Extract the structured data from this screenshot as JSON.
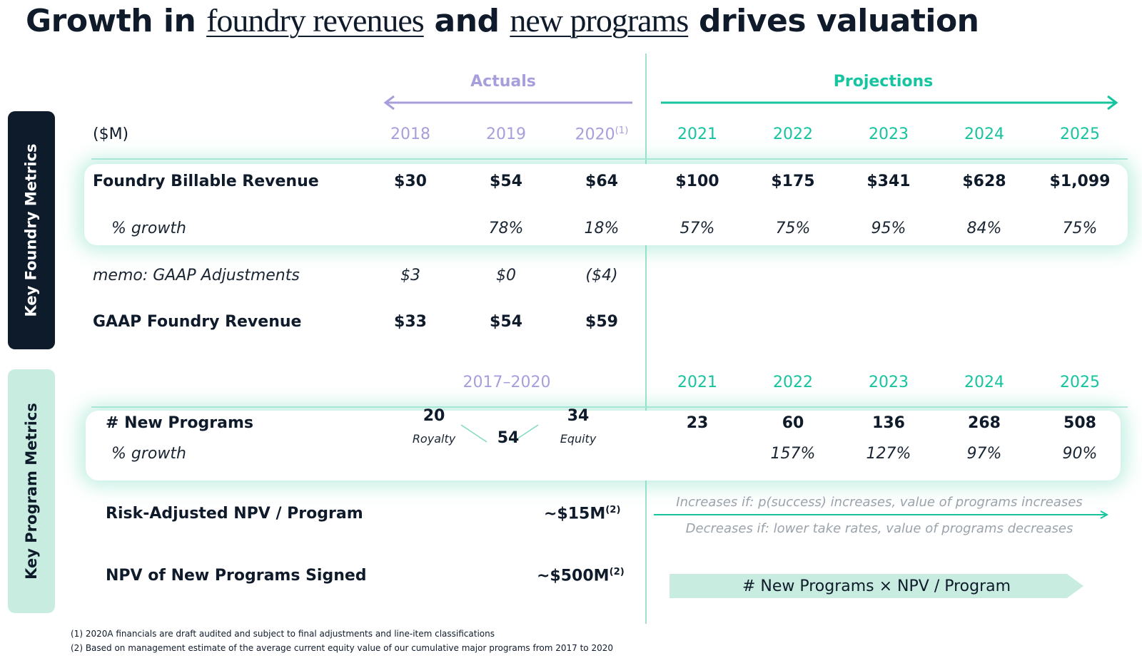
{
  "title": {
    "part1": "Growth in ",
    "part2": "foundry revenues",
    "part3": " and ",
    "part4": "new programs",
    "part5": " drives valuation"
  },
  "tabs": {
    "foundry": "Key Foundry Metrics",
    "program": "Key Program Metrics"
  },
  "headers": {
    "actuals": "Actuals",
    "projections": "Projections",
    "unit": "($M)",
    "actual_years": [
      "2018",
      "2019",
      "2020"
    ],
    "year_2020_sup": "(1)",
    "proj_years": [
      "2021",
      "2022",
      "2023",
      "2024",
      "2025"
    ],
    "program_actual_range": "2017–2020"
  },
  "foundry": {
    "billable_label": "Foundry Billable Revenue",
    "billable_values": [
      "$30",
      "$54",
      "$64",
      "$100",
      "$175",
      "$341",
      "$628",
      "$1,099"
    ],
    "growth_label": "% growth",
    "growth_values": [
      "",
      "78%",
      "18%",
      "57%",
      "75%",
      "95%",
      "84%",
      "75%"
    ],
    "memo_label": "memo: GAAP Adjustments",
    "memo_values": [
      "$3",
      "$0",
      "($4)"
    ],
    "gaap_label": "GAAP Foundry Revenue",
    "gaap_values": [
      "$33",
      "$54",
      "$59"
    ]
  },
  "programs": {
    "new_label": "# New Programs",
    "royalty_count": "20",
    "royalty_label": "Royalty",
    "total_count": "54",
    "equity_count": "34",
    "equity_label": "Equity",
    "proj_values": [
      "23",
      "60",
      "136",
      "268",
      "508"
    ],
    "growth_label": "% growth",
    "growth_values": [
      "",
      "157%",
      "127%",
      "97%",
      "90%"
    ],
    "npv_label": "Risk-Adjusted NPV / Program",
    "npv_value": "~$15M",
    "npv_sup": "(2)",
    "increase_note": "Increases if: p(success) increases, value of programs increases",
    "decrease_note": "Decreases if: lower take rates, value of programs decreases",
    "signed_label": "NPV of New Programs Signed",
    "signed_value": "~$500M",
    "signed_sup": "(2)",
    "formula": "# New Programs × NPV / Program"
  },
  "footnotes": [
    "(1) 2020A financials are draft audited and subject to final adjustments and line-item classifications",
    "(2) Based on management estimate of the average current equity value of our cumulative major programs from 2017 to 2020"
  ],
  "colors": {
    "navy": "#0d1b2a",
    "mint": "#c8ece0",
    "teal": "#16c49f",
    "lavender": "#a69fdc"
  }
}
